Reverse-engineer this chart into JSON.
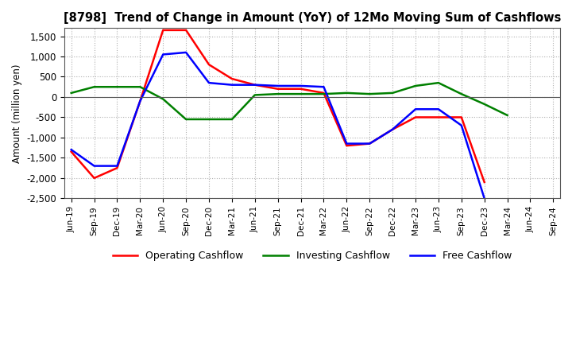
{
  "title": "[8798]  Trend of Change in Amount (YoY) of 12Mo Moving Sum of Cashflows",
  "ylabel": "Amount (million yen)",
  "x_labels": [
    "Jun-19",
    "Sep-19",
    "Dec-19",
    "Mar-20",
    "Jun-20",
    "Sep-20",
    "Dec-20",
    "Mar-21",
    "Jun-21",
    "Sep-21",
    "Dec-21",
    "Mar-22",
    "Jun-22",
    "Sep-22",
    "Dec-22",
    "Mar-23",
    "Jun-23",
    "Sep-23",
    "Dec-23",
    "Mar-24",
    "Jun-24",
    "Sep-24"
  ],
  "operating": [
    -1350,
    -2000,
    -1750,
    -100,
    1650,
    1650,
    800,
    450,
    300,
    200,
    200,
    100,
    -1200,
    -1150,
    -800,
    -500,
    -500,
    -500,
    -2100,
    null,
    null,
    null
  ],
  "investing": [
    100,
    250,
    250,
    250,
    -50,
    -550,
    -550,
    -550,
    50,
    75,
    75,
    75,
    100,
    75,
    100,
    275,
    350,
    75,
    -175,
    -450,
    null,
    null
  ],
  "free": [
    -1300,
    -1700,
    -1700,
    -100,
    1050,
    1100,
    350,
    300,
    300,
    275,
    275,
    250,
    -1150,
    -1150,
    -800,
    -300,
    -300,
    -700,
    -2500,
    null,
    null,
    null
  ],
  "ylim": [
    -2500,
    1700
  ],
  "yticks": [
    -2500,
    -2000,
    -1500,
    -1000,
    -500,
    0,
    500,
    1000,
    1500
  ],
  "operating_color": "#ff0000",
  "investing_color": "#008000",
  "free_color": "#0000ff",
  "grid_color": "#b0b0b0",
  "grid_style": "dotted",
  "background_color": "#ffffff"
}
